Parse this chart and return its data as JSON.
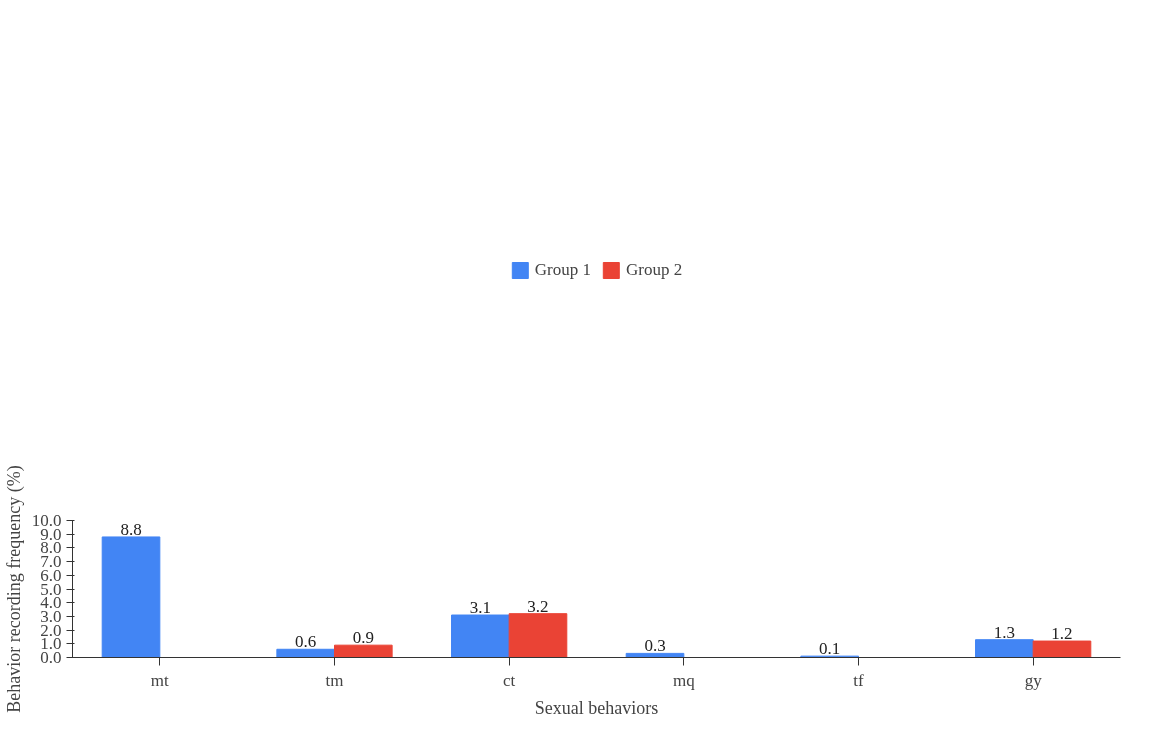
{
  "chart_data": {
    "type": "bar",
    "xlabel": "Sexual behaviors",
    "ylabel": "Behavior recording frequency (%)",
    "categories": [
      "mt",
      "tm",
      "ct",
      "mq",
      "tf",
      "gy"
    ],
    "series": [
      {
        "name": "Group 1",
        "color": "#4285f4",
        "values": [
          8.8,
          0.6,
          3.1,
          0.3,
          0.1,
          1.3
        ]
      },
      {
        "name": "Group 2",
        "color": "#ea4335",
        "values": [
          null,
          0.9,
          3.2,
          null,
          null,
          1.2
        ]
      }
    ],
    "ylim": [
      0,
      10
    ],
    "yticks": [
      {
        "value": 0,
        "label": "0.0"
      },
      {
        "value": 1,
        "label": "1.0"
      },
      {
        "value": 2,
        "label": "2.0"
      },
      {
        "value": 3,
        "label": "3.0"
      },
      {
        "value": 4,
        "label": "4.0"
      },
      {
        "value": 5,
        "label": "5.0"
      },
      {
        "value": 6,
        "label": "6.0"
      },
      {
        "value": 7,
        "label": "7.0"
      },
      {
        "value": 8,
        "label": "8.0"
      },
      {
        "value": 9,
        "label": "9.0"
      },
      {
        "value": 10,
        "label": "10.0"
      }
    ],
    "data_labels": true,
    "legend": "top",
    "grid": false
  }
}
